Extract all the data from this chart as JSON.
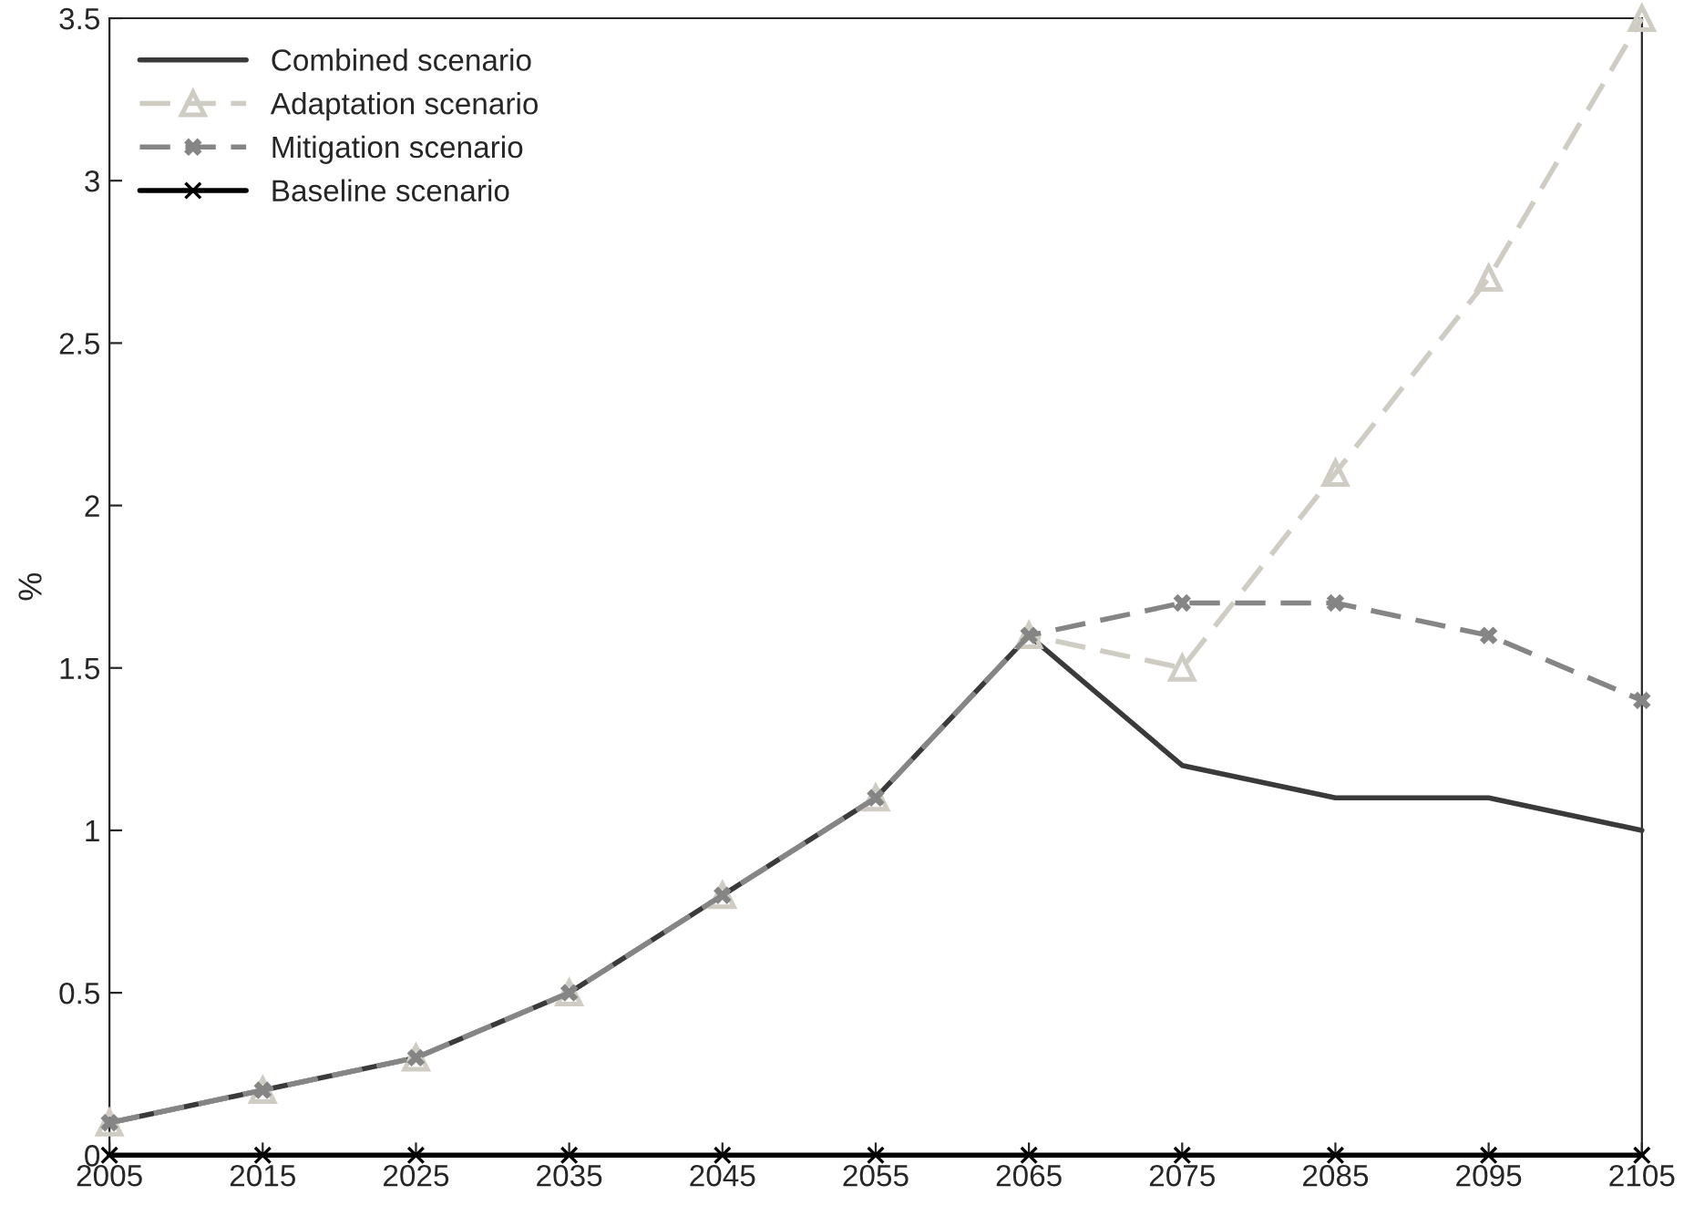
{
  "chart_data": {
    "type": "line",
    "ylabel": "%",
    "x": [
      2005,
      2015,
      2025,
      2035,
      2045,
      2055,
      2065,
      2075,
      2085,
      2095,
      2105
    ],
    "series": [
      {
        "name": "Combined scenario",
        "color": "#3a3a3a",
        "marker": "none",
        "line_style": "solid",
        "values": [
          0.1,
          0.2,
          0.3,
          0.5,
          0.8,
          1.1,
          1.6,
          1.2,
          1.1,
          1.1,
          1.0
        ]
      },
      {
        "name": "Adaptation scenario",
        "color": "#cfccc4",
        "marker": "triangle",
        "line_style": "dashed",
        "values": [
          0.1,
          0.2,
          0.3,
          0.5,
          0.8,
          1.1,
          1.6,
          1.5,
          2.1,
          2.7,
          3.5
        ]
      },
      {
        "name": "Mitigation scenario",
        "color": "#858585",
        "marker": "cross",
        "line_style": "dashed",
        "values": [
          0.1,
          0.2,
          0.3,
          0.5,
          0.8,
          1.1,
          1.6,
          1.7,
          1.7,
          1.6,
          1.4
        ]
      },
      {
        "name": "Baseline scenario",
        "color": "#000000",
        "marker": "cross",
        "line_style": "solid",
        "values": [
          0,
          0,
          0,
          0,
          0,
          0,
          0,
          0,
          0,
          0,
          0
        ]
      }
    ],
    "xlim": [
      2005,
      2105
    ],
    "xticks": [
      2005,
      2015,
      2025,
      2035,
      2045,
      2055,
      2065,
      2075,
      2085,
      2095,
      2105
    ],
    "ylim": [
      0,
      3.5
    ],
    "yticks": [
      0,
      0.5,
      1,
      1.5,
      2,
      2.5,
      3,
      3.5
    ],
    "grid": false,
    "legend": "top left"
  }
}
